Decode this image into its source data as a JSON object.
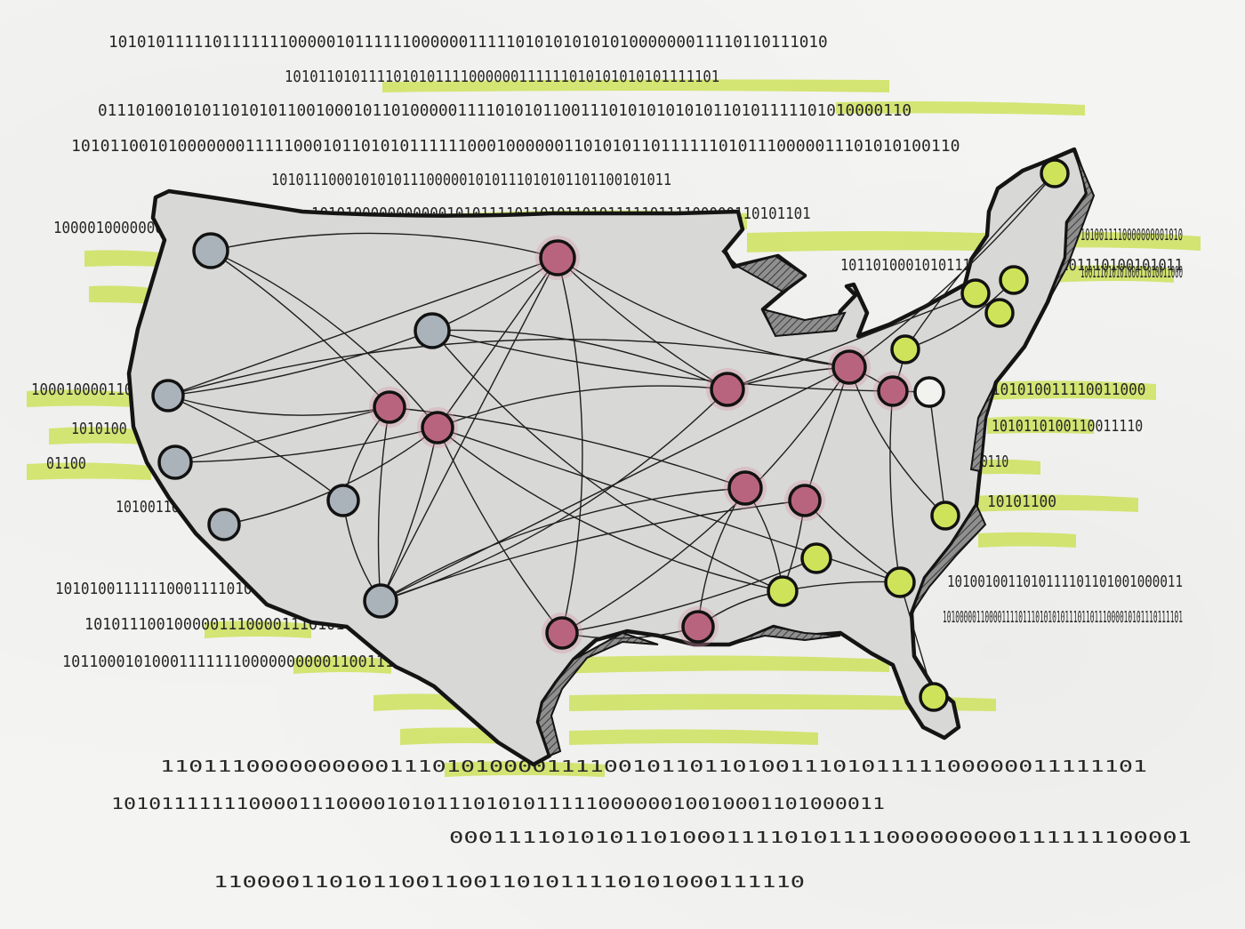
{
  "illustration": {
    "subject": "network-map-illustration",
    "colors": {
      "paper": "#f4f4f2",
      "land": "#d9d9d7",
      "outline": "#141414",
      "highlight": "#c9e04a",
      "node_west": "#aab3b9",
      "node_central": "#b9647e",
      "node_east": "#cfe35a"
    }
  },
  "binary_lines": [
    "1010101111101111111000001011111100000011111010101010101000000011110110111010",
    "1010110101111010101111000000111111010101010101111101",
    "01110100101011010101100100010110100000111101010110011101010101010110101111101010000110",
    "10101100101000000011111000101101010111111000100000011010101101111110101110000011101010100110",
    "1010111000101010111000001010111010101101100101011",
    "10101000000000001010111101101011010111110111100000110101101",
    "1010011110000000001010",
    "101101000101011110000010110101110100101011",
    "10011101010100011010011000",
    "10000100000000100101011",
    "10001000011000111110",
    "101010011110011000",
    "1010100",
    "1010110100110011110",
    "01100",
    "10110",
    "101001100",
    "10101100",
    "1010010011010111101101001000011",
    "101010011111100011110101100000001010110101",
    "10101110010000011100001110101011111110100000011110101111000110101011010110",
    "101000001100001111011101010101110110111000010101110111101",
    "1011000101000111111100000000001100111110010",
    "110111000000000011101010000111100101101101001110101111100000011111101",
    "10101111111000011100001010111010101111100000010010001101000011",
    "000111101010110100011110101111000000000111111100001",
    "11000011010110011001101011110101000111110"
  ]
}
